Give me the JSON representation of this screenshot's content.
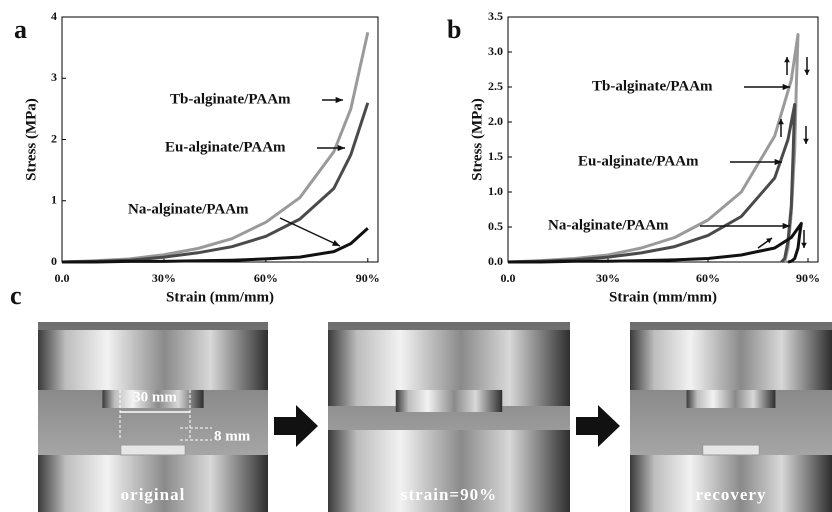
{
  "chart_data": [
    {
      "type": "line",
      "panel_label": "a",
      "x_label": "Strain (mm/mm)",
      "y_label": "Stress (MPa)",
      "xlim": [
        0,
        93
      ],
      "ylim": [
        0,
        4
      ],
      "xticks": [
        {
          "value": 0,
          "label": "0.0"
        },
        {
          "value": 30,
          "label": "30%"
        },
        {
          "value": 60,
          "label": "60%"
        },
        {
          "value": 90,
          "label": "90%"
        }
      ],
      "yticks": [
        0,
        1,
        2,
        3,
        4
      ],
      "series": [
        {
          "name": "Tb-alginate/PAAm",
          "color": "#9a9a9a",
          "x": [
            0,
            10,
            20,
            30,
            40,
            50,
            60,
            70,
            80,
            85,
            90
          ],
          "values": [
            0,
            0.02,
            0.05,
            0.12,
            0.22,
            0.38,
            0.65,
            1.05,
            1.8,
            2.5,
            3.75
          ]
        },
        {
          "name": "Eu-alginate/PAAm",
          "color": "#4a4a4a",
          "x": [
            0,
            10,
            20,
            30,
            40,
            50,
            60,
            70,
            80,
            85,
            90
          ],
          "values": [
            0,
            0.01,
            0.03,
            0.08,
            0.15,
            0.25,
            0.42,
            0.7,
            1.2,
            1.75,
            2.6
          ]
        },
        {
          "name": "Na-alginate/PAAm",
          "color": "#111111",
          "x": [
            0,
            10,
            20,
            30,
            40,
            50,
            60,
            70,
            80,
            85,
            90
          ],
          "values": [
            0,
            0,
            0.01,
            0.01,
            0.02,
            0.03,
            0.05,
            0.08,
            0.17,
            0.3,
            0.55
          ]
        }
      ]
    },
    {
      "type": "line",
      "panel_label": "b",
      "x_label": "Strain (mm/mm)",
      "y_label": "Stress (MPa)",
      "xlim": [
        0,
        93
      ],
      "ylim": [
        0,
        3.5
      ],
      "xticks": [
        {
          "value": 0,
          "label": "0.0"
        },
        {
          "value": 30,
          "label": "30%"
        },
        {
          "value": 60,
          "label": "60%"
        },
        {
          "value": 90,
          "label": "90%"
        }
      ],
      "yticks": [
        {
          "value": 0,
          "label": "0.0"
        },
        0.5,
        {
          "value": 1,
          "label": "1.0"
        },
        1.5,
        {
          "value": 2,
          "label": "2.0"
        },
        2.5,
        {
          "value": 3,
          "label": "3.0"
        },
        3.5
      ],
      "series": [
        {
          "name": "Tb-alginate/PAAm",
          "color": "#9a9a9a",
          "x": [
            0,
            10,
            20,
            30,
            40,
            50,
            60,
            70,
            80,
            85,
            87,
            86.5,
            86,
            85,
            84,
            83
          ],
          "values": [
            0,
            0.02,
            0.05,
            0.1,
            0.2,
            0.35,
            0.6,
            1.0,
            1.8,
            2.6,
            3.25,
            2.5,
            1.6,
            0.7,
            0.2,
            0
          ]
        },
        {
          "name": "Eu-alginate/PAAm",
          "color": "#4a4a4a",
          "x": [
            0,
            10,
            20,
            30,
            40,
            50,
            60,
            70,
            80,
            84,
            86,
            85.5,
            85,
            84,
            83,
            82
          ],
          "values": [
            0,
            0.01,
            0.03,
            0.07,
            0.13,
            0.22,
            0.38,
            0.65,
            1.2,
            1.75,
            2.25,
            1.5,
            0.8,
            0.3,
            0.05,
            0
          ]
        },
        {
          "name": "Na-alginate/PAAm",
          "color": "#111111",
          "x": [
            0,
            10,
            20,
            30,
            40,
            50,
            60,
            70,
            80,
            85,
            88,
            87.5,
            87,
            86,
            85,
            84
          ],
          "values": [
            0,
            0,
            0.01,
            0.01,
            0.02,
            0.03,
            0.05,
            0.1,
            0.2,
            0.35,
            0.55,
            0.4,
            0.2,
            0.05,
            0.01,
            0
          ]
        }
      ]
    }
  ],
  "photos": {
    "panel_label": "c",
    "images": [
      {
        "caption": "original",
        "annotations": [
          "30 mm",
          "8 mm"
        ]
      },
      {
        "caption": "strain=90%"
      },
      {
        "caption": "recovery"
      }
    ]
  }
}
